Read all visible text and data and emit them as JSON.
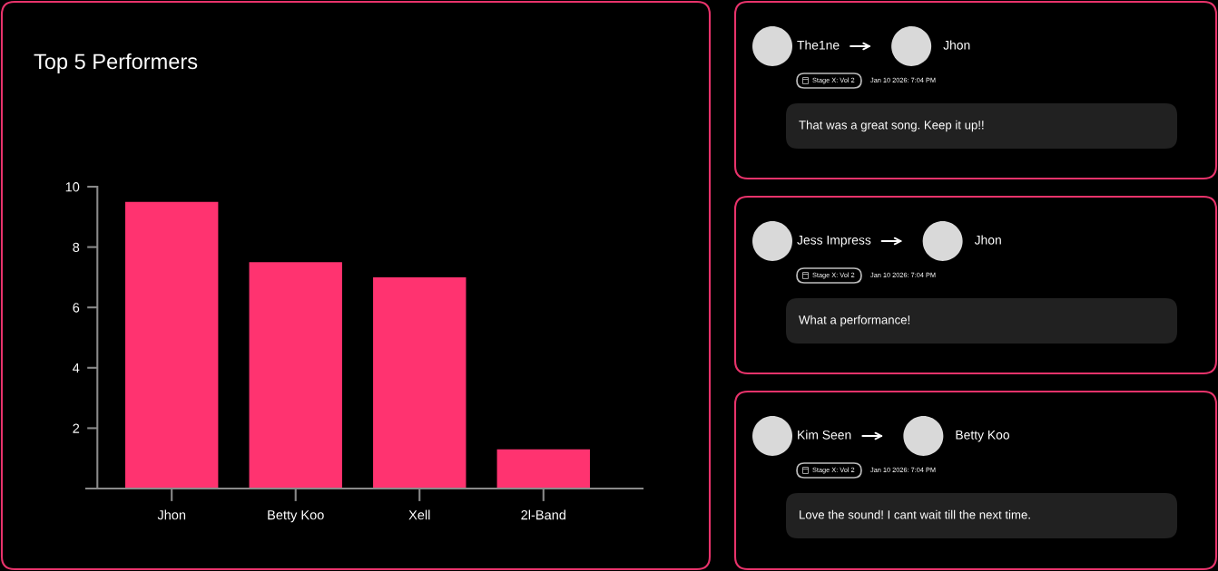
{
  "chart_data": [
    {
      "type": "bar",
      "title": "Top 5 Performers",
      "categories": [
        "Jhon",
        "Betty Koo",
        "Xell",
        "2l-Band"
      ],
      "values": [
        9.5,
        7.5,
        7,
        1.3
      ],
      "color": "#ff3370",
      "ylim": [
        0,
        10
      ],
      "yticks": [
        2,
        4,
        6,
        8,
        10
      ]
    },
    {
      "type": "other",
      "annotations": [
        "The1ne",
        "Jhon",
        "Stage X: Vol 2",
        "Jan 10 2026: 7:04 PM",
        "That was a great song. Keep it up!!"
      ]
    },
    {
      "type": "other",
      "annotations": [
        "Jess Impress",
        "Jhon",
        "Stage X: Vol 2",
        "Jan 10 2026: 7:04 PM",
        "What a performance!"
      ]
    },
    {
      "type": "other",
      "annotations": [
        "Kim Seen",
        "Betty Koo",
        "Stage X: Vol 2",
        "Jan 10 2026: 7:04 PM",
        "Love the sound! I cant wait till the next time."
      ]
    }
  ]
}
